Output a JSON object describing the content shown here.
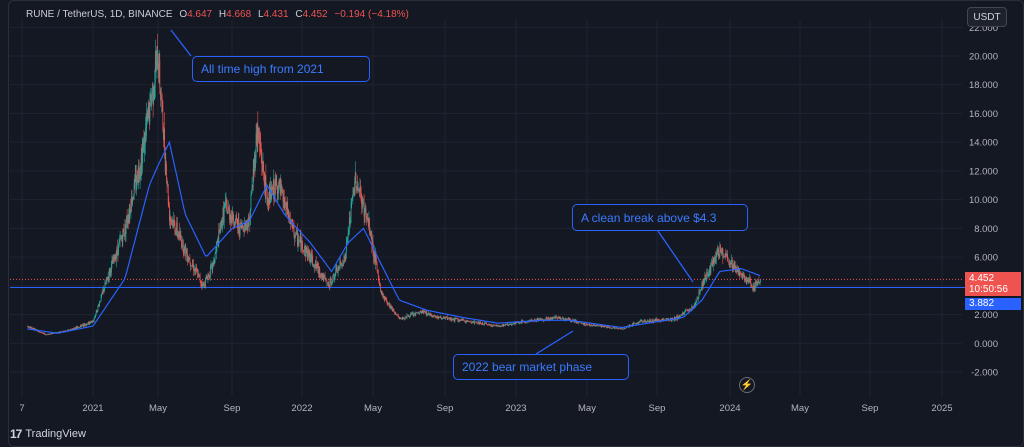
{
  "header": {
    "symbol": "RUNE / TetherUS, 1D, BINANCE",
    "open_label": "O",
    "open": "4.647",
    "high_label": "H",
    "high": "4.668",
    "low_label": "L",
    "low": "4.431",
    "close_label": "C",
    "close": "4.452",
    "change": "−0.194 (−4.18%)"
  },
  "currency_button": "USDT",
  "price_tags": {
    "last_price": "4.452",
    "countdown": "10:50:56",
    "line_price": "3.882"
  },
  "annotations": {
    "ath": "All time high from 2021",
    "breakout": "A clean break above $4.3",
    "bear": "2022 bear market phase"
  },
  "branding": "TradingView",
  "colors": {
    "background": "#141823",
    "up": "#26a69a",
    "down": "#ef5350",
    "ma": "#2962ff",
    "horizontal_line": "#2962ff",
    "annotation": "#2962ff"
  },
  "chart_data": {
    "type": "candlestick",
    "title": "RUNE / TetherUS, 1D, BINANCE",
    "y_axis": {
      "ticks": [
        "22.000",
        "20.000",
        "18.000",
        "16.000",
        "14.000",
        "12.000",
        "10.000",
        "8.000",
        "6.000",
        "4.000",
        "2.000",
        "0.000",
        "-2.000"
      ],
      "range": [
        -3.0,
        23.0
      ],
      "position": "right"
    },
    "x_axis": {
      "ticks": [
        "7",
        "2021",
        "May",
        "Sep",
        "2022",
        "May",
        "Sep",
        "2023",
        "May",
        "Sep",
        "2024",
        "May",
        "Sep",
        "2025"
      ],
      "tick_dates": [
        "2020-07",
        "2021-01",
        "2021-05",
        "2021-09",
        "2022-01",
        "2022-05",
        "2022-09",
        "2023-01",
        "2023-05",
        "2023-09",
        "2024-01",
        "2024-05",
        "2024-09",
        "2025-01"
      ]
    },
    "price_profile": [
      [
        "2020-07-15",
        1.2
      ],
      [
        "2020-09-01",
        0.6
      ],
      [
        "2020-11-01",
        0.9
      ],
      [
        "2021-01-01",
        1.5
      ],
      [
        "2021-02-01",
        5.0
      ],
      [
        "2021-03-01",
        8.0
      ],
      [
        "2021-04-01",
        13.0
      ],
      [
        "2021-05-01",
        20.0
      ],
      [
        "2021-05-20",
        9.0
      ],
      [
        "2021-06-15",
        6.5
      ],
      [
        "2021-07-15",
        4.0
      ],
      [
        "2021-08-01",
        5.5
      ],
      [
        "2021-08-20",
        9.5
      ],
      [
        "2021-09-15",
        8.0
      ],
      [
        "2021-10-01",
        8.5
      ],
      [
        "2021-10-15",
        15.0
      ],
      [
        "2021-11-01",
        10.0
      ],
      [
        "2021-11-20",
        11.0
      ],
      [
        "2021-12-20",
        7.5
      ],
      [
        "2022-01-15",
        6.0
      ],
      [
        "2022-02-15",
        4.0
      ],
      [
        "2022-03-15",
        6.0
      ],
      [
        "2022-04-01",
        11.5
      ],
      [
        "2022-04-25",
        8.0
      ],
      [
        "2022-05-15",
        3.5
      ],
      [
        "2022-06-15",
        1.7
      ],
      [
        "2022-07-25",
        2.2
      ],
      [
        "2022-08-20",
        1.8
      ],
      [
        "2022-10-15",
        1.5
      ],
      [
        "2022-12-01",
        1.2
      ],
      [
        "2023-02-01",
        1.6
      ],
      [
        "2023-03-15",
        1.8
      ],
      [
        "2023-05-01",
        1.3
      ],
      [
        "2023-07-01",
        1.0
      ],
      [
        "2023-08-01",
        1.5
      ],
      [
        "2023-10-01",
        1.7
      ],
      [
        "2023-11-01",
        2.5
      ],
      [
        "2023-11-20",
        4.5
      ],
      [
        "2023-12-15",
        6.5
      ],
      [
        "2024-01-15",
        5.0
      ],
      [
        "2024-02-10",
        4.0
      ],
      [
        "2024-02-23",
        4.45
      ]
    ],
    "moving_average_profile": [
      [
        "2020-07-15",
        1.0
      ],
      [
        "2020-10-01",
        0.7
      ],
      [
        "2021-01-01",
        1.2
      ],
      [
        "2021-03-01",
        4.5
      ],
      [
        "2021-04-15",
        11.0
      ],
      [
        "2021-05-20",
        14.0
      ],
      [
        "2021-06-15",
        9.0
      ],
      [
        "2021-07-20",
        6.0
      ],
      [
        "2021-09-01",
        8.0
      ],
      [
        "2021-10-01",
        8.5
      ],
      [
        "2021-11-01",
        11.0
      ],
      [
        "2021-12-01",
        9.0
      ],
      [
        "2022-01-15",
        7.0
      ],
      [
        "2022-02-20",
        5.0
      ],
      [
        "2022-03-20",
        7.0
      ],
      [
        "2022-04-15",
        8.0
      ],
      [
        "2022-05-15",
        5.5
      ],
      [
        "2022-06-15",
        3.0
      ],
      [
        "2022-08-01",
        2.3
      ],
      [
        "2022-10-01",
        1.8
      ],
      [
        "2022-12-01",
        1.4
      ],
      [
        "2023-02-15",
        1.6
      ],
      [
        "2023-04-01",
        1.6
      ],
      [
        "2023-07-01",
        1.1
      ],
      [
        "2023-09-01",
        1.5
      ],
      [
        "2023-10-15",
        1.8
      ],
      [
        "2023-11-15",
        3.0
      ],
      [
        "2023-12-15",
        5.0
      ],
      [
        "2024-01-20",
        5.2
      ],
      [
        "2024-02-23",
        4.7
      ]
    ],
    "horizontal_line": 3.882,
    "last_price": 4.452
  }
}
